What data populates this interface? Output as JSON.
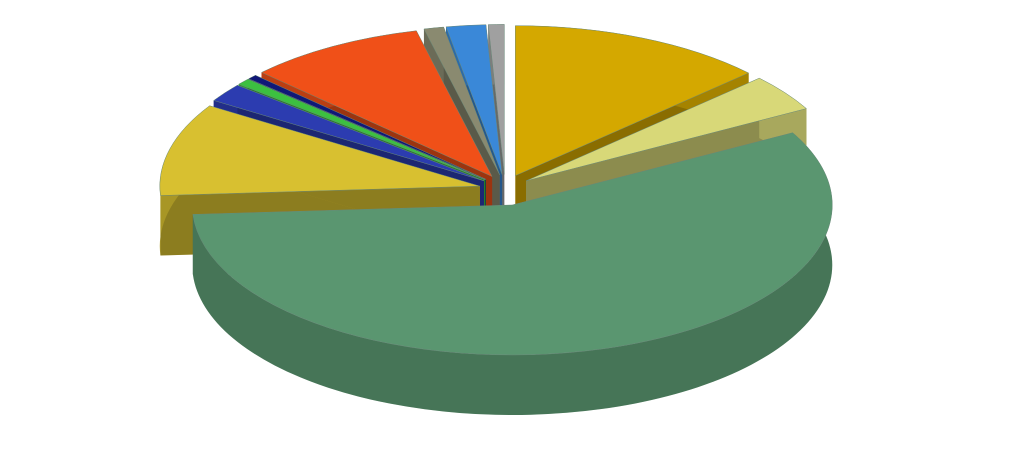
{
  "chart_data": {
    "type": "pie",
    "values": [
      13,
      4,
      57,
      10,
      2,
      0.7,
      0.5,
      9,
      1,
      2,
      0.8
    ],
    "colors": [
      "#d4a800",
      "#d8d878",
      "#5a9670",
      "#d8c030",
      "#2c3cb0",
      "#3cc040",
      "#101878",
      "#f05018",
      "#8a8a70",
      "#3a88d8",
      "#a0a0a0"
    ]
  }
}
